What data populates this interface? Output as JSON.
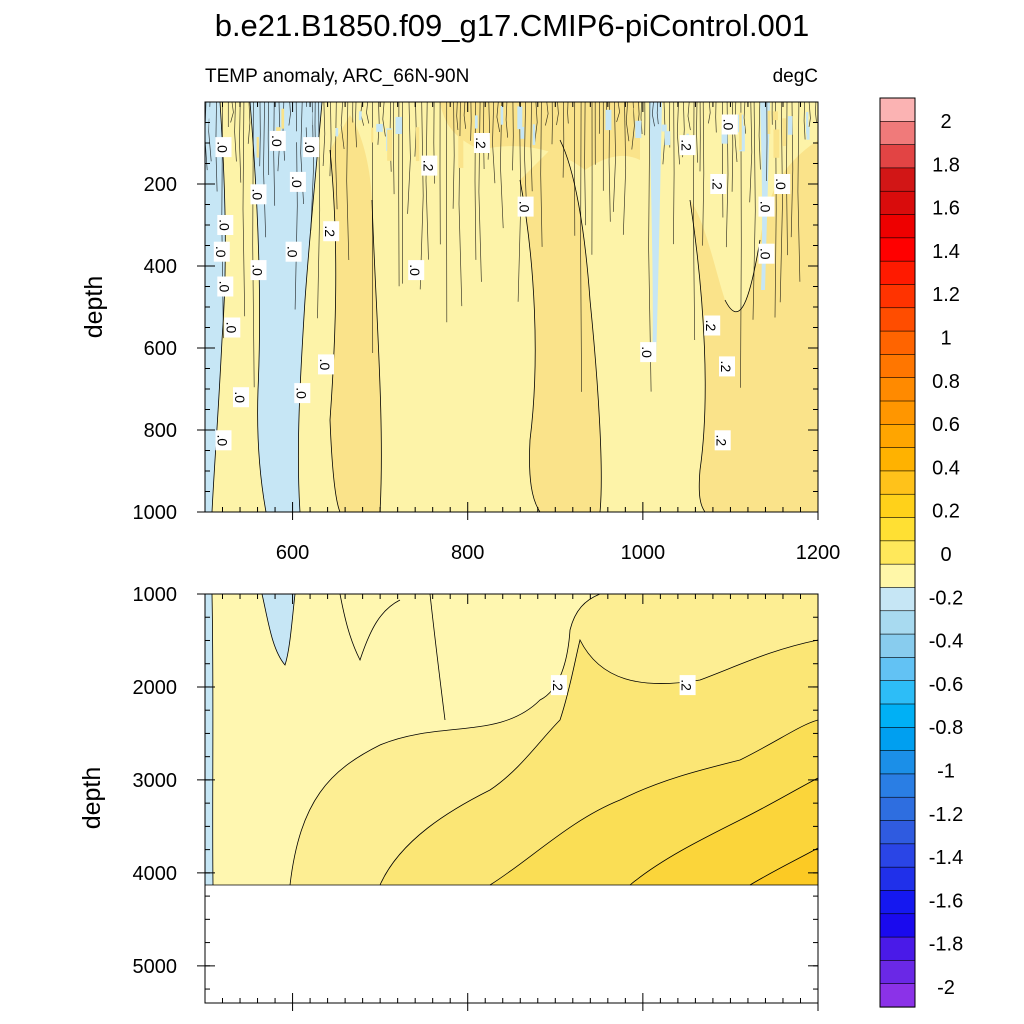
{
  "title": "b.e21.B1850.f09_g17.CMIP6-piControl.001",
  "chart_data": {
    "type": "heatmap",
    "subtitle_left": "TEMP anomaly, ARC_66N-90N",
    "subtitle_right": "degC",
    "xlim": [
      500,
      1200
    ],
    "x_ticks": [
      "600",
      "800",
      "1000",
      "1200"
    ],
    "x_tick_values": [
      600,
      800,
      1000,
      1200
    ],
    "panels": [
      {
        "ylabel": "depth",
        "ylim": [
          0,
          1000
        ],
        "y_ticks": [
          "200",
          "400",
          "600",
          "800",
          "1000"
        ],
        "y_tick_values": [
          200,
          400,
          600,
          800,
          1000
        ],
        "contour_labels": [
          {
            "text": ".0",
            "x": 520,
            "y": 110
          },
          {
            "text": ".0",
            "x": 582,
            "y": 95
          },
          {
            "text": ".0",
            "x": 620,
            "y": 110
          },
          {
            "text": ".2",
            "x": 815,
            "y": 100
          },
          {
            "text": ".2",
            "x": 1050,
            "y": 105
          },
          {
            "text": ".0",
            "x": 1098,
            "y": 55
          },
          {
            "text": ".2",
            "x": 755,
            "y": 155
          },
          {
            "text": ".0",
            "x": 605,
            "y": 195
          },
          {
            "text": ".0",
            "x": 560,
            "y": 225
          },
          {
            "text": ".2",
            "x": 1085,
            "y": 200
          },
          {
            "text": ".0",
            "x": 1158,
            "y": 200
          },
          {
            "text": ".0",
            "x": 865,
            "y": 255
          },
          {
            "text": ".0",
            "x": 1140,
            "y": 255
          },
          {
            "text": ".0",
            "x": 522,
            "y": 300
          },
          {
            "text": ".2",
            "x": 643,
            "y": 315
          },
          {
            "text": ".0",
            "x": 518,
            "y": 365
          },
          {
            "text": ".0",
            "x": 600,
            "y": 365
          },
          {
            "text": ".0",
            "x": 560,
            "y": 410
          },
          {
            "text": ".0",
            "x": 1140,
            "y": 370
          },
          {
            "text": ".0",
            "x": 740,
            "y": 410
          },
          {
            "text": ".0",
            "x": 522,
            "y": 450
          },
          {
            "text": ".0",
            "x": 530,
            "y": 550
          },
          {
            "text": ".2",
            "x": 1078,
            "y": 545
          },
          {
            "text": ".0",
            "x": 1005,
            "y": 610
          },
          {
            "text": ".0",
            "x": 637,
            "y": 640
          },
          {
            "text": ".2",
            "x": 1095,
            "y": 645
          },
          {
            "text": ".0",
            "x": 540,
            "y": 720
          },
          {
            "text": ".0",
            "x": 610,
            "y": 710
          },
          {
            "text": ".0",
            "x": 520,
            "y": 825
          },
          {
            "text": ".2",
            "x": 1090,
            "y": 825
          }
        ]
      },
      {
        "ylabel": "depth",
        "ylim": [
          1000,
          5400
        ],
        "y_ticks": [
          "1000",
          "2000",
          "3000",
          "4000",
          "5000"
        ],
        "y_tick_values": [
          1000,
          2000,
          3000,
          4000,
          5000
        ],
        "data_bottom": 4120,
        "contour_labels": [
          {
            "text": ".2",
            "x": 903,
            "y": 1980
          },
          {
            "text": ".2",
            "x": 1050,
            "y": 1980
          }
        ]
      }
    ],
    "colorbar": {
      "labels": [
        "2",
        "1.8",
        "1.6",
        "1.4",
        "1.2",
        "1",
        "0.8",
        "0.6",
        "0.4",
        "0.2",
        "0",
        "-0.2",
        "-0.4",
        "-0.6",
        "-0.8",
        "-1",
        "-1.2",
        "-1.4",
        "-1.6",
        "-1.8",
        "-2"
      ],
      "colors": [
        "#fbb3b3",
        "#f07a7a",
        "#e24444",
        "#d21616",
        "#d90c0c",
        "#ee0000",
        "#ff0000",
        "#ff1a00",
        "#ff3300",
        "#ff4d00",
        "#ff6400",
        "#ff7600",
        "#ff8a00",
        "#ff9600",
        "#ffa500",
        "#ffb200",
        "#ffc21a",
        "#ffd11a",
        "#ffe033",
        "#ffe85a",
        "#fff7a8",
        "#c6e6f5",
        "#a8daf0",
        "#88ccee",
        "#62c2f4",
        "#2dbdf7",
        "#00b0f5",
        "#009ff0",
        "#1b8fe8",
        "#2a7ee4",
        "#2e6ee0",
        "#2f5be0",
        "#2a45e6",
        "#2030ea",
        "#1518f0",
        "#1a0aee",
        "#4a1ae8",
        "#6a28e6",
        "#8b32e8"
      ]
    }
  }
}
